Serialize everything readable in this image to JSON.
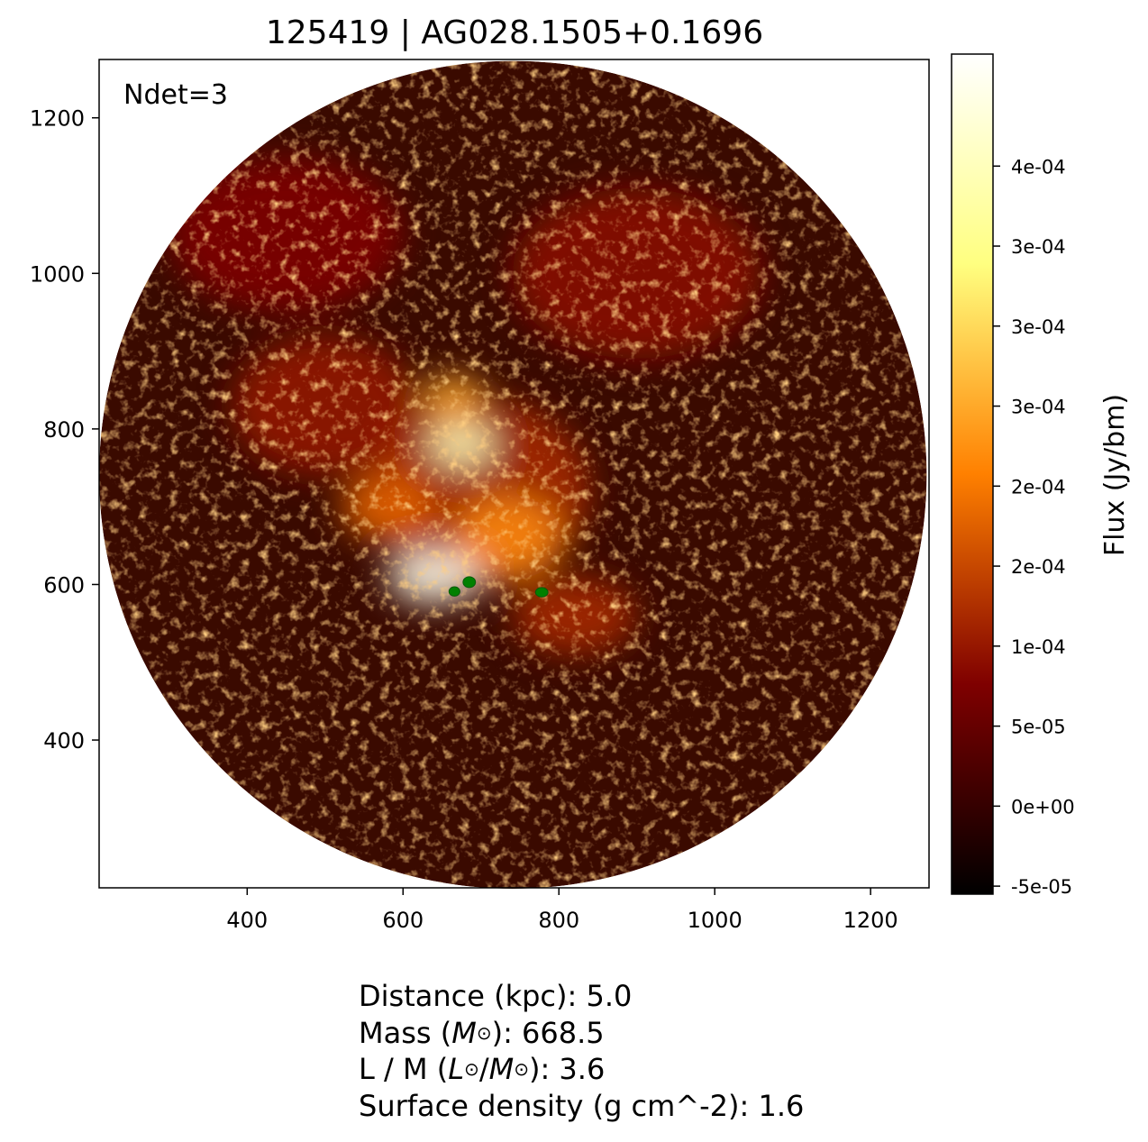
{
  "chart_data": {
    "type": "heatmap",
    "title": "125419 | AG028.1505+0.1696",
    "annotation": "Ndet=3",
    "xlim": [
      210,
      1275
    ],
    "ylim": [
      210,
      1275
    ],
    "x_ticks": [
      400,
      600,
      800,
      1000,
      1200
    ],
    "x_tick_labels": [
      "400",
      "600",
      "800",
      "1000",
      "1200"
    ],
    "y_ticks": [
      400,
      600,
      800,
      1000,
      1200
    ],
    "y_tick_labels": [
      "400",
      "600",
      "800",
      "1000",
      "1200"
    ],
    "image_field": {
      "shape": "circle",
      "center": [
        741,
        741
      ],
      "radius": 531
    },
    "colorbar": {
      "label": "Flux (Jy/bm)",
      "colormap": "afmhot",
      "range": [
        -5.5e-05,
        0.00047
      ],
      "tick_values": [
        -5e-05,
        0,
        5e-05,
        0.0001,
        0.00015,
        0.0002,
        0.00025,
        0.0003,
        0.00035,
        0.0004
      ],
      "tick_labels": [
        "-5e-05",
        "0e+00",
        "5e-05",
        "1e-04",
        "2e-04",
        "2e-04",
        "3e-04",
        "3e-04",
        "3e-04",
        "4e-04"
      ],
      "colormap_stops": [
        {
          "offset": 0.0,
          "color": "#000000"
        },
        {
          "offset": 0.25,
          "color": "#7f0000"
        },
        {
          "offset": 0.5,
          "color": "#ff8000"
        },
        {
          "offset": 0.75,
          "color": "#ffff80"
        },
        {
          "offset": 1.0,
          "color": "#ffffff"
        }
      ]
    },
    "emission_regions": [
      {
        "x": 640,
        "y": 610,
        "rx": 60,
        "ry": 35,
        "flux": 0.00045
      },
      {
        "x": 675,
        "y": 780,
        "rx": 45,
        "ry": 30,
        "flux": 0.0004
      },
      {
        "x": 665,
        "y": 840,
        "rx": 40,
        "ry": 30,
        "flux": 0.00025
      },
      {
        "x": 735,
        "y": 660,
        "rx": 70,
        "ry": 55,
        "flux": 0.00022
      },
      {
        "x": 580,
        "y": 700,
        "rx": 60,
        "ry": 45,
        "flux": 0.00018
      },
      {
        "x": 700,
        "y": 720,
        "rx": 140,
        "ry": 120,
        "flux": 0.00012
      },
      {
        "x": 820,
        "y": 560,
        "rx": 80,
        "ry": 50,
        "flux": 0.00012
      },
      {
        "x": 500,
        "y": 830,
        "rx": 120,
        "ry": 90,
        "flux": 0.0001
      },
      {
        "x": 900,
        "y": 1000,
        "rx": 160,
        "ry": 110,
        "flux": 9e-05
      },
      {
        "x": 450,
        "y": 1050,
        "rx": 150,
        "ry": 100,
        "flux": 8e-05
      }
    ],
    "detections": [
      {
        "x": 666,
        "y": 591,
        "rx": 7,
        "ry": 6,
        "color": "#008000"
      },
      {
        "x": 685,
        "y": 603,
        "rx": 8,
        "ry": 7,
        "color": "#008000"
      },
      {
        "x": 778,
        "y": 590,
        "rx": 8,
        "ry": 6,
        "color": "#008000"
      }
    ]
  },
  "info": {
    "distance_label": "Distance (kpc): ",
    "distance_value": "5.0",
    "mass_label_prefix": "Mass (",
    "mass_symbol": "M",
    "mass_label_suffix": "): ",
    "mass_value": "668.5",
    "lm_label_prefix": "L / M (",
    "lm_symbol_l": "L",
    "lm_sep": "/",
    "lm_symbol_m": "M",
    "lm_label_suffix": "): ",
    "lm_value": "3.6",
    "surface_density_label": "Surface density (g cm^-2): ",
    "surface_density_value": "1.6"
  }
}
